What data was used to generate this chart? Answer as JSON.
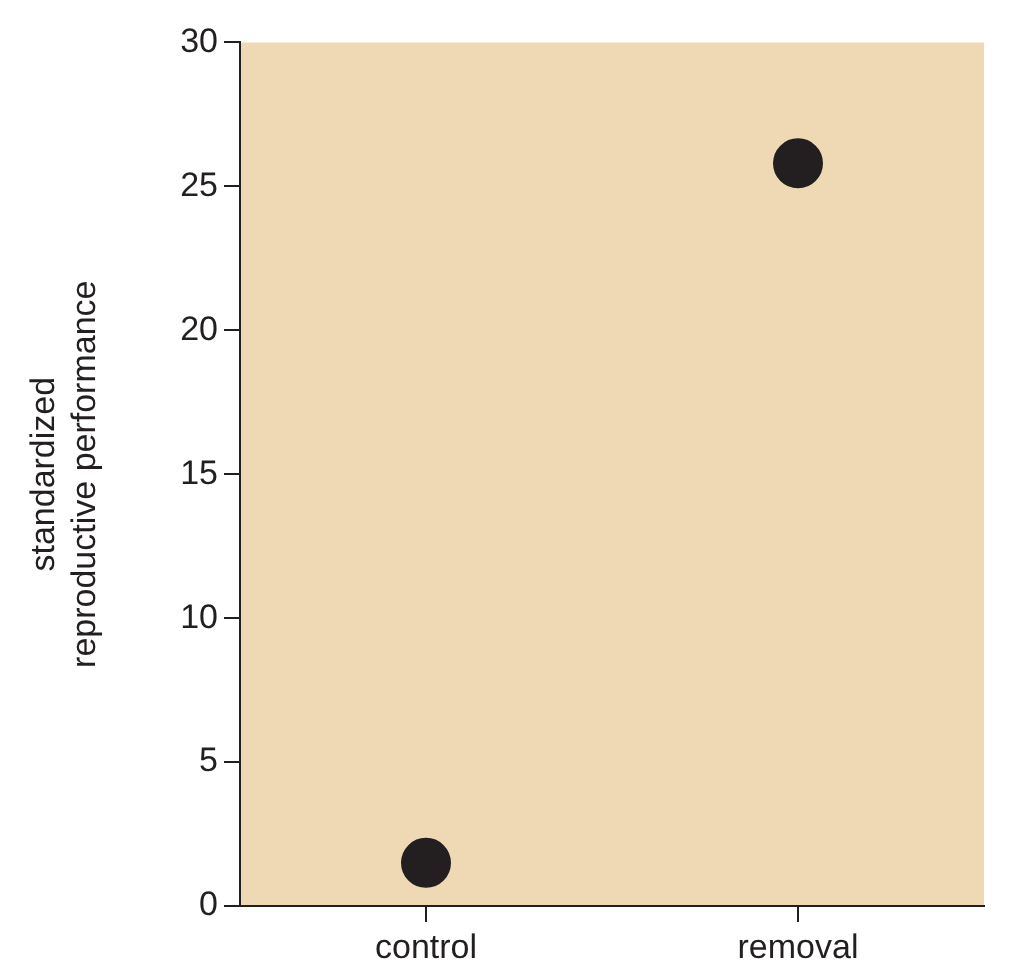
{
  "chart_data": {
    "type": "scatter",
    "ylabel": "standardized\nreproductive performance",
    "categories": [
      "control",
      "removal"
    ],
    "series": [
      {
        "color": "#231f20",
        "values": [
          1.5,
          25.8
        ]
      }
    ],
    "ylim": [
      0,
      30
    ],
    "yticks": [
      0,
      5,
      10,
      15,
      20,
      25,
      30
    ],
    "grid": false,
    "legend": false,
    "marker": "circle"
  }
}
